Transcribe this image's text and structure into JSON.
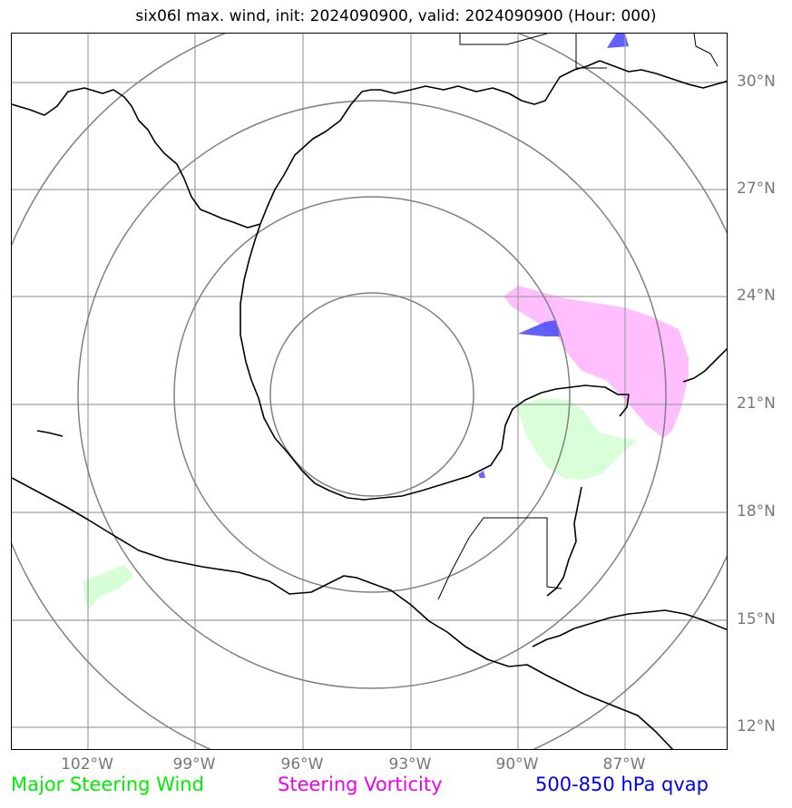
{
  "title": "six06l max. wind, init: 2024090900, valid: 2024090900 (Hour: 000)",
  "lat_labels": [
    "30°N",
    "27°N",
    "24°N",
    "21°N",
    "18°N",
    "15°N",
    "12°N"
  ],
  "lon_labels": [
    "102°W",
    "99°W",
    "96°W",
    "93°W",
    "90°W",
    "87°W"
  ],
  "legend": {
    "steering_wind": "Major Steering Wind",
    "steering_vorticity": "Steering Vorticity",
    "qvap": "500-850 hPa qvap"
  },
  "colors": {
    "steering_wind": "#00ee00",
    "steering_vorticity": "#ee00ee",
    "qvap": "#0000ee",
    "grid": "#999999",
    "rings": "#808080"
  }
}
